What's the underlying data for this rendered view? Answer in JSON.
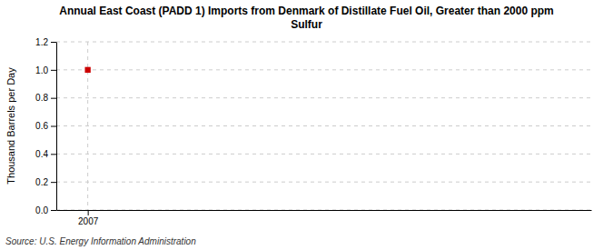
{
  "chart_data": {
    "type": "scatter",
    "title": "Annual East Coast (PADD 1) Imports from Denmark of Distillate Fuel Oil, Greater than 2000 ppm\nSulfur",
    "ylabel": "Thousand Barrels per Day",
    "annotations": [
      "Source: U.S. Energy Information Administration"
    ],
    "x": [
      2007
    ],
    "values": [
      1.0
    ],
    "color": "#cc0000",
    "marker": "square",
    "xlim": [
      2006.5,
      2015.0
    ],
    "xticks": [
      2007
    ],
    "ylim": [
      0.0,
      1.2
    ],
    "yticks": [
      {
        "value": 0.0,
        "label": "0.0"
      },
      0.2,
      0.4,
      0.6,
      0.8,
      {
        "value": 1.0,
        "label": "1.0"
      },
      1.2
    ],
    "grid": true
  }
}
